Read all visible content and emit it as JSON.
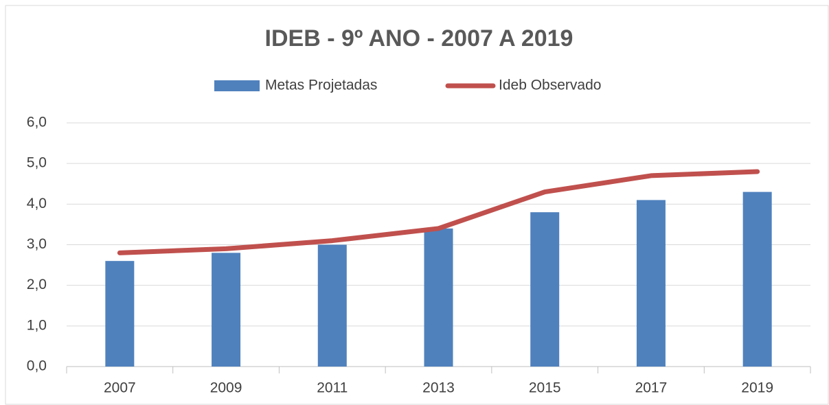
{
  "chart_data": {
    "type": "bar",
    "title": "IDEB - 9º ANO - 2007 A 2019",
    "categories": [
      "2007",
      "2009",
      "2011",
      "2013",
      "2015",
      "2017",
      "2019"
    ],
    "series": [
      {
        "name": "Metas Projetadas",
        "type": "bar",
        "color": "#4f81bd",
        "values": [
          2.6,
          2.8,
          3.0,
          3.4,
          3.8,
          4.1,
          4.3
        ]
      },
      {
        "name": "Ideb Observado",
        "type": "line",
        "color": "#c0504d",
        "values": [
          2.8,
          2.9,
          3.1,
          3.4,
          4.3,
          4.7,
          4.8
        ]
      }
    ],
    "ylim": [
      0,
      6
    ],
    "yticks": [
      {
        "value": 0,
        "label": "0,0"
      },
      {
        "value": 1,
        "label": "1,0"
      },
      {
        "value": 2,
        "label": "2,0"
      },
      {
        "value": 3,
        "label": "3,0"
      },
      {
        "value": 4,
        "label": "4,0"
      },
      {
        "value": 5,
        "label": "5,0"
      },
      {
        "value": 6,
        "label": "6,0"
      }
    ],
    "grid": true,
    "legend": "top"
  }
}
